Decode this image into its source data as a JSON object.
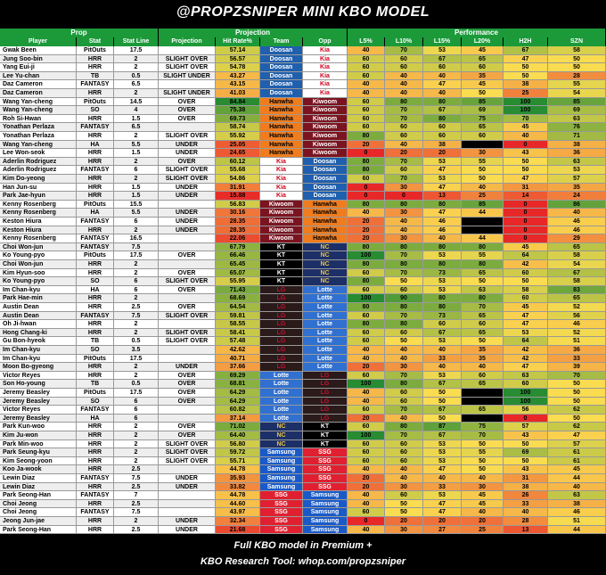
{
  "header": {
    "title": "@PROPZSNIPER MINI KBO MODEL"
  },
  "groups": [
    "Prop",
    "Projection",
    "Performance"
  ],
  "columns": [
    "Player",
    "Stat",
    "Stat Line",
    "Projection",
    "Hit Rate%",
    "Team",
    "Opp",
    "L5%",
    "L10%",
    "L15%",
    "L20%",
    "H2H",
    "SZN"
  ],
  "team_colors": {
    "Doosan": {
      "bg": "#1f5fae",
      "fg": "#ffffff"
    },
    "Kia": {
      "bg": "#ffffff",
      "fg": "#d0021b"
    },
    "Hanwha": {
      "bg": "#f07c1e",
      "fg": "#000000"
    },
    "Kiwoom": {
      "bg": "#7b1420",
      "fg": "#ffffff"
    },
    "KT": {
      "bg": "#000000",
      "fg": "#ffffff"
    },
    "NC": {
      "bg": "#1c2f66",
      "fg": "#e8c44a"
    },
    "LG": {
      "bg": "#2a1a1a",
      "fg": "#c8102e"
    },
    "Lotte": {
      "bg": "#3070d0",
      "fg": "#ffffff"
    },
    "Samsung": {
      "bg": "#1a5ac8",
      "fg": "#ffffff"
    },
    "SSG": {
      "bg": "#e02030",
      "fg": "#ffffff"
    }
  },
  "rows": [
    [
      "Gwak Been",
      "PitOuts",
      17.5,
      null,
      "57.14",
      "Doosan",
      "Kia",
      40,
      70,
      53,
      45,
      67,
      58
    ],
    [
      "Jung Soo-bin",
      "HRR",
      2,
      "SLIGHT OVER",
      "56.57",
      "Doosan",
      "Kia",
      60,
      60,
      67,
      65,
      47,
      50
    ],
    [
      "Yang Eui-ji",
      "HRR",
      2,
      "SLIGHT OVER",
      "54.78",
      "Doosan",
      "Kia",
      60,
      60,
      60,
      60,
      50,
      50
    ],
    [
      "Lee Yu-chan",
      "TB",
      0.5,
      "SLIGHT UNDER",
      "43.27",
      "Doosan",
      "Kia",
      60,
      40,
      40,
      35,
      50,
      28
    ],
    [
      "Daz Cameron",
      "FANTASY",
      6.5,
      null,
      "43.15",
      "Doosan",
      "Kia",
      40,
      40,
      47,
      45,
      38,
      55
    ],
    [
      "Daz Cameron",
      "HRR",
      2,
      "SLIGHT UNDER",
      "41.03",
      "Doosan",
      "Kia",
      40,
      40,
      40,
      50,
      25,
      54
    ],
    [
      "Wang Yan-cheng",
      "PitOuts",
      14.5,
      "OVER",
      "84.84",
      "Hanwha",
      "Kiwoom",
      60,
      80,
      80,
      85,
      100,
      85
    ],
    [
      "Wang Yan-cheng",
      "SO",
      4,
      "OVER",
      "75.38",
      "Hanwha",
      "Kiwoom",
      60,
      70,
      67,
      69,
      100,
      69
    ],
    [
      "Roh Si-Hwan",
      "HRR",
      1.5,
      "OVER",
      "69.73",
      "Hanwha",
      "Kiwoom",
      60,
      70,
      80,
      75,
      70,
      63
    ],
    [
      "Yonathan Perlaza",
      "FANTASY",
      6.5,
      null,
      "58.74",
      "Hanwha",
      "Kiwoom",
      60,
      60,
      60,
      65,
      45,
      76
    ],
    [
      "Yonathan Perlaza",
      "HRR",
      2,
      "SLIGHT OVER",
      "55.92",
      "Hanwha",
      "Kiwoom",
      80,
      60,
      60,
      60,
      40,
      71
    ],
    [
      "Wang Yan-cheng",
      "HA",
      5.5,
      "UNDER",
      "25.05",
      "Hanwha",
      "Kiwoom",
      20,
      40,
      38,
      null,
      0,
      38
    ],
    [
      "Lee Won-seok",
      "HRR",
      1.5,
      "UNDER",
      "24.65",
      "Hanwha",
      "Kiwoom",
      0,
      20,
      20,
      30,
      43,
      36
    ],
    [
      "Aderlin Rodriguez",
      "HRR",
      2,
      "OVER",
      "60.12",
      "Kia",
      "Doosan",
      80,
      70,
      53,
      55,
      50,
      63
    ],
    [
      "Aderlin Rodriguez",
      "FANTASY",
      6,
      "SLIGHT OVER",
      "55.68",
      "Kia",
      "Doosan",
      80,
      60,
      47,
      50,
      50,
      53
    ],
    [
      "Kim Do-yeong",
      "HRR",
      2,
      "SLIGHT OVER",
      "54.86",
      "Kia",
      "Doosan",
      60,
      70,
      53,
      50,
      47,
      57
    ],
    [
      "Han Jun-su",
      "HRR",
      1.5,
      "UNDER",
      "31.91",
      "Kia",
      "Doosan",
      0,
      30,
      47,
      40,
      31,
      35
    ],
    [
      "Park Jae-hyun",
      "HRR",
      1.5,
      "UNDER",
      "15.88",
      "Kia",
      "Doosan",
      0,
      0,
      13,
      25,
      14,
      24
    ],
    [
      "Kenny Rosenberg",
      "PitOuts",
      15.5,
      null,
      "56.83",
      "Kiwoom",
      "Hanwha",
      80,
      80,
      80,
      85,
      0,
      86
    ],
    [
      "Kenny Rosenberg",
      "HA",
      5.5,
      "UNDER",
      "30.16",
      "Kiwoom",
      "Hanwha",
      40,
      30,
      47,
      44,
      0,
      40
    ],
    [
      "Keston Hiura",
      "FANTASY",
      6,
      "UNDER",
      "28.35",
      "Kiwoom",
      "Hanwha",
      20,
      40,
      46,
      null,
      0,
      46
    ],
    [
      "Keston Hiura",
      "HRR",
      2,
      "UNDER",
      "28.35",
      "Kiwoom",
      "Hanwha",
      20,
      40,
      46,
      null,
      0,
      46
    ],
    [
      "Kenny Rosenberg",
      "FANTASY",
      16.5,
      null,
      "22.06",
      "Kiwoom",
      "Hanwha",
      20,
      30,
      40,
      44,
      0,
      29
    ],
    [
      "Choi Won-jun",
      "FANTASY",
      7.5,
      null,
      "67.79",
      "KT",
      "NC",
      80,
      80,
      80,
      80,
      45,
      65
    ],
    [
      "Ko Young-pyo",
      "PitOuts",
      17.5,
      "OVER",
      "66.46",
      "KT",
      "NC",
      100,
      70,
      53,
      55,
      64,
      58
    ],
    [
      "Choi Won-jun",
      "HRR",
      2,
      null,
      "65.45",
      "KT",
      "NC",
      80,
      80,
      80,
      80,
      42,
      54
    ],
    [
      "Kim Hyun-soo",
      "HRR",
      2,
      "OVER",
      "65.07",
      "KT",
      "NC",
      60,
      70,
      73,
      65,
      60,
      67
    ],
    [
      "Ko Young-pyo",
      "SO",
      6,
      "SLIGHT OVER",
      "55.95",
      "KT",
      "NC",
      80,
      50,
      53,
      50,
      50,
      58
    ],
    [
      "Im Chan-kyu",
      "HA",
      6,
      "OVER",
      "71.43",
      "LG",
      "Lotte",
      60,
      60,
      53,
      63,
      58,
      83
    ],
    [
      "Park Hae-min",
      "HRR",
      2,
      null,
      "68.69",
      "LG",
      "Lotte",
      100,
      90,
      80,
      80,
      60,
      65
    ],
    [
      "Austin Dean",
      "HRR",
      2.5,
      "OVER",
      "64.54",
      "LG",
      "Lotte",
      80,
      80,
      80,
      70,
      45,
      52
    ],
    [
      "Austin Dean",
      "FANTASY",
      7.5,
      "SLIGHT OVER",
      "59.81",
      "LG",
      "Lotte",
      60,
      70,
      73,
      65,
      47,
      56
    ],
    [
      "Oh Ji-hwan",
      "HRR",
      2,
      null,
      "58.55",
      "LG",
      "Lotte",
      80,
      80,
      60,
      60,
      47,
      46
    ],
    [
      "Hong Chang-ki",
      "HRR",
      2,
      "SLIGHT OVER",
      "58.41",
      "LG",
      "Lotte",
      60,
      60,
      67,
      65,
      53,
      52
    ],
    [
      "Gu Bon-hyeok",
      "TB",
      0.5,
      "SLIGHT OVER",
      "57.48",
      "LG",
      "Lotte",
      60,
      50,
      53,
      50,
      64,
      51
    ],
    [
      "Im Chan-kyu",
      "SO",
      3.5,
      null,
      "42.62",
      "LG",
      "Lotte",
      40,
      40,
      40,
      35,
      42,
      36
    ],
    [
      "Im Chan-kyu",
      "PitOuts",
      17.5,
      null,
      "40.71",
      "LG",
      "Lotte",
      40,
      40,
      33,
      35,
      42,
      33
    ],
    [
      "Moon Bo-gyeong",
      "HRR",
      2,
      "UNDER",
      "37.66",
      "LG",
      "Lotte",
      20,
      30,
      40,
      40,
      47,
      39
    ],
    [
      "Victor Reyes",
      "HRR",
      2,
      "OVER",
      "69.29",
      "Lotte",
      "LG",
      60,
      70,
      53,
      60,
      63,
      70
    ],
    [
      "Son Ho-young",
      "TB",
      0.5,
      "OVER",
      "68.81",
      "Lotte",
      "LG",
      100,
      80,
      67,
      65,
      60,
      50
    ],
    [
      "Jeremy Beasley",
      "PitOuts",
      17.5,
      "OVER",
      "64.29",
      "Lotte",
      "LG",
      40,
      60,
      50,
      null,
      100,
      50
    ],
    [
      "Jeremy Beasley",
      "SO",
      6,
      "OVER",
      "64.29",
      "Lotte",
      "LG",
      40,
      60,
      50,
      null,
      100,
      50
    ],
    [
      "Victor Reyes",
      "FANTASY",
      6,
      null,
      "60.82",
      "Lotte",
      "LG",
      60,
      70,
      67,
      65,
      56,
      62
    ],
    [
      "Jeremy Beasley",
      "HA",
      6,
      null,
      "37.14",
      "Lotte",
      "LG",
      20,
      40,
      50,
      null,
      0,
      50
    ],
    [
      "Park Kun-woo",
      "HRR",
      2,
      "OVER",
      "71.02",
      "NC",
      "KT",
      60,
      80,
      87,
      75,
      57,
      62
    ],
    [
      "Kim Ju-won",
      "HRR",
      2,
      "OVER",
      "64.40",
      "NC",
      "KT",
      100,
      70,
      67,
      70,
      43,
      47
    ],
    [
      "Park Min-woo",
      "HRR",
      2,
      "SLIGHT OVER",
      "56.80",
      "NC",
      "KT",
      60,
      60,
      53,
      50,
      50,
      57
    ],
    [
      "Park Seung-kyu",
      "HRR",
      2,
      "SLIGHT OVER",
      "59.72",
      "Samsung",
      "SSG",
      60,
      60,
      53,
      55,
      69,
      61
    ],
    [
      "Kim Seong-yoon",
      "HRR",
      2,
      "SLIGHT OVER",
      "55.71",
      "Samsung",
      "SSG",
      60,
      60,
      53,
      50,
      50,
      61
    ],
    [
      "Koo Ja-wook",
      "HRR",
      2.5,
      null,
      "44.78",
      "Samsung",
      "SSG",
      40,
      40,
      47,
      50,
      43,
      45
    ],
    [
      "Lewin Diaz",
      "FANTASY",
      7.5,
      "UNDER",
      "35.93",
      "Samsung",
      "SSG",
      20,
      40,
      40,
      40,
      31,
      44
    ],
    [
      "Lewin Diaz",
      "HRR",
      2.5,
      "UNDER",
      "33.82",
      "Samsung",
      "SSG",
      20,
      30,
      33,
      30,
      38,
      40
    ],
    [
      "Park Seong-Han",
      "FANTASY",
      7,
      null,
      "44.78",
      "SSG",
      "Samsung",
      40,
      60,
      53,
      45,
      26,
      63
    ],
    [
      "Choi Jeong",
      "HRR",
      2.5,
      null,
      "44.60",
      "SSG",
      "Samsung",
      40,
      50,
      47,
      45,
      33,
      38
    ],
    [
      "Choi Jeong",
      "FANTASY",
      7.5,
      null,
      "43.97",
      "SSG",
      "Samsung",
      60,
      50,
      47,
      40,
      40,
      46
    ],
    [
      "Jeong Jun-jae",
      "HRR",
      2,
      "UNDER",
      "32.34",
      "SSG",
      "Samsung",
      0,
      20,
      20,
      20,
      28,
      51
    ],
    [
      "Park Seong-Han",
      "HRR",
      2.5,
      "UNDER",
      "21.68",
      "SSG",
      "Samsung",
      40,
      30,
      27,
      25,
      13,
      44
    ]
  ],
  "footer": {
    "line1": "Full KBO model in Premium +",
    "line2": "KBO Research Tool: whop.com/propzsniper"
  }
}
